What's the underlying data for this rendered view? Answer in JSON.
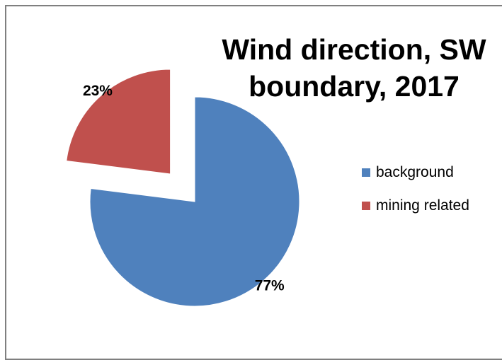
{
  "chart_data": {
    "type": "pie",
    "title": "Wind direction, SW boundary, 2017",
    "categories": [
      "background",
      "mining related"
    ],
    "values": [
      77,
      23
    ],
    "data_labels": [
      "77%",
      "23%"
    ],
    "colors": [
      "#4f81bd",
      "#c0504d"
    ],
    "exploded": [
      "mining related"
    ],
    "legend_position": "right"
  }
}
